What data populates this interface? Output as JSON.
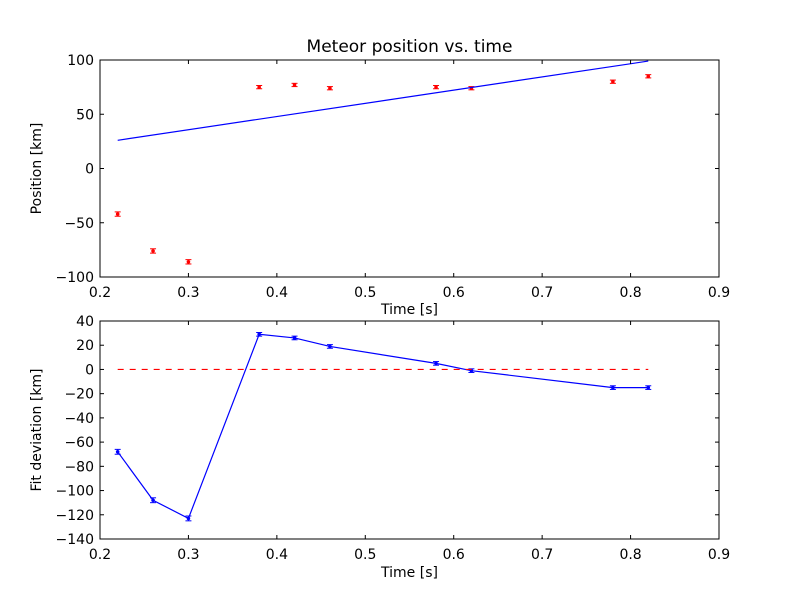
{
  "chart_data": [
    {
      "type": "scatter",
      "title": "Meteor position vs. time",
      "xlabel": "Time [s]",
      "ylabel": "Position [km]",
      "xlim": [
        0.2,
        0.9
      ],
      "ylim": [
        -100,
        100
      ],
      "xticks": [
        0.2,
        0.3,
        0.4,
        0.5,
        0.6,
        0.7,
        0.8,
        0.9
      ],
      "yticks": [
        -100,
        -50,
        0,
        50,
        100
      ],
      "x_tick_labels": [
        "0.2",
        "0.3",
        "0.4",
        "0.5",
        "0.6",
        "0.7",
        "0.8",
        "0.9"
      ],
      "y_tick_labels": [
        "−100",
        "−50",
        "0",
        "50",
        "100"
      ],
      "grid": false,
      "series": [
        {
          "kind": "errorbar-points",
          "color": "#ff0000",
          "x": [
            0.22,
            0.26,
            0.3,
            0.38,
            0.42,
            0.46,
            0.58,
            0.62,
            0.78,
            0.82
          ],
          "y": [
            -42,
            -76,
            -86,
            75,
            77,
            74,
            75,
            74,
            80,
            85
          ],
          "yerr": [
            2,
            2,
            2,
            1.5,
            1.5,
            1.5,
            1.5,
            1.5,
            1.5,
            1.5
          ]
        },
        {
          "kind": "line",
          "color": "#0000ff",
          "x": [
            0.22,
            0.82
          ],
          "y": [
            26,
            99
          ]
        }
      ]
    },
    {
      "type": "line",
      "title": "",
      "xlabel": "Time [s]",
      "ylabel": "Fit deviation [km]",
      "xlim": [
        0.2,
        0.9
      ],
      "ylim": [
        -140,
        40
      ],
      "xticks": [
        0.2,
        0.3,
        0.4,
        0.5,
        0.6,
        0.7,
        0.8,
        0.9
      ],
      "yticks": [
        -140,
        -120,
        -100,
        -80,
        -60,
        -40,
        -20,
        0,
        20,
        40
      ],
      "x_tick_labels": [
        "0.2",
        "0.3",
        "0.4",
        "0.5",
        "0.6",
        "0.7",
        "0.8",
        "0.9"
      ],
      "y_tick_labels": [
        "−140",
        "−120",
        "−100",
        "−80",
        "−60",
        "−40",
        "−20",
        "0",
        "20",
        "40"
      ],
      "grid": false,
      "series": [
        {
          "kind": "errorbar-line",
          "color": "#0000ff",
          "x": [
            0.22,
            0.26,
            0.3,
            0.38,
            0.42,
            0.46,
            0.58,
            0.62,
            0.78,
            0.82
          ],
          "y": [
            -68,
            -108,
            -123,
            29,
            26,
            19,
            5,
            -1,
            -15,
            -15
          ],
          "yerr": [
            2,
            2,
            2,
            1.5,
            1.5,
            1.5,
            1.5,
            1.5,
            1.5,
            1.5
          ]
        },
        {
          "kind": "dashed-line",
          "color": "#ff0000",
          "x": [
            0.22,
            0.82
          ],
          "y": [
            0,
            0
          ]
        }
      ]
    }
  ]
}
